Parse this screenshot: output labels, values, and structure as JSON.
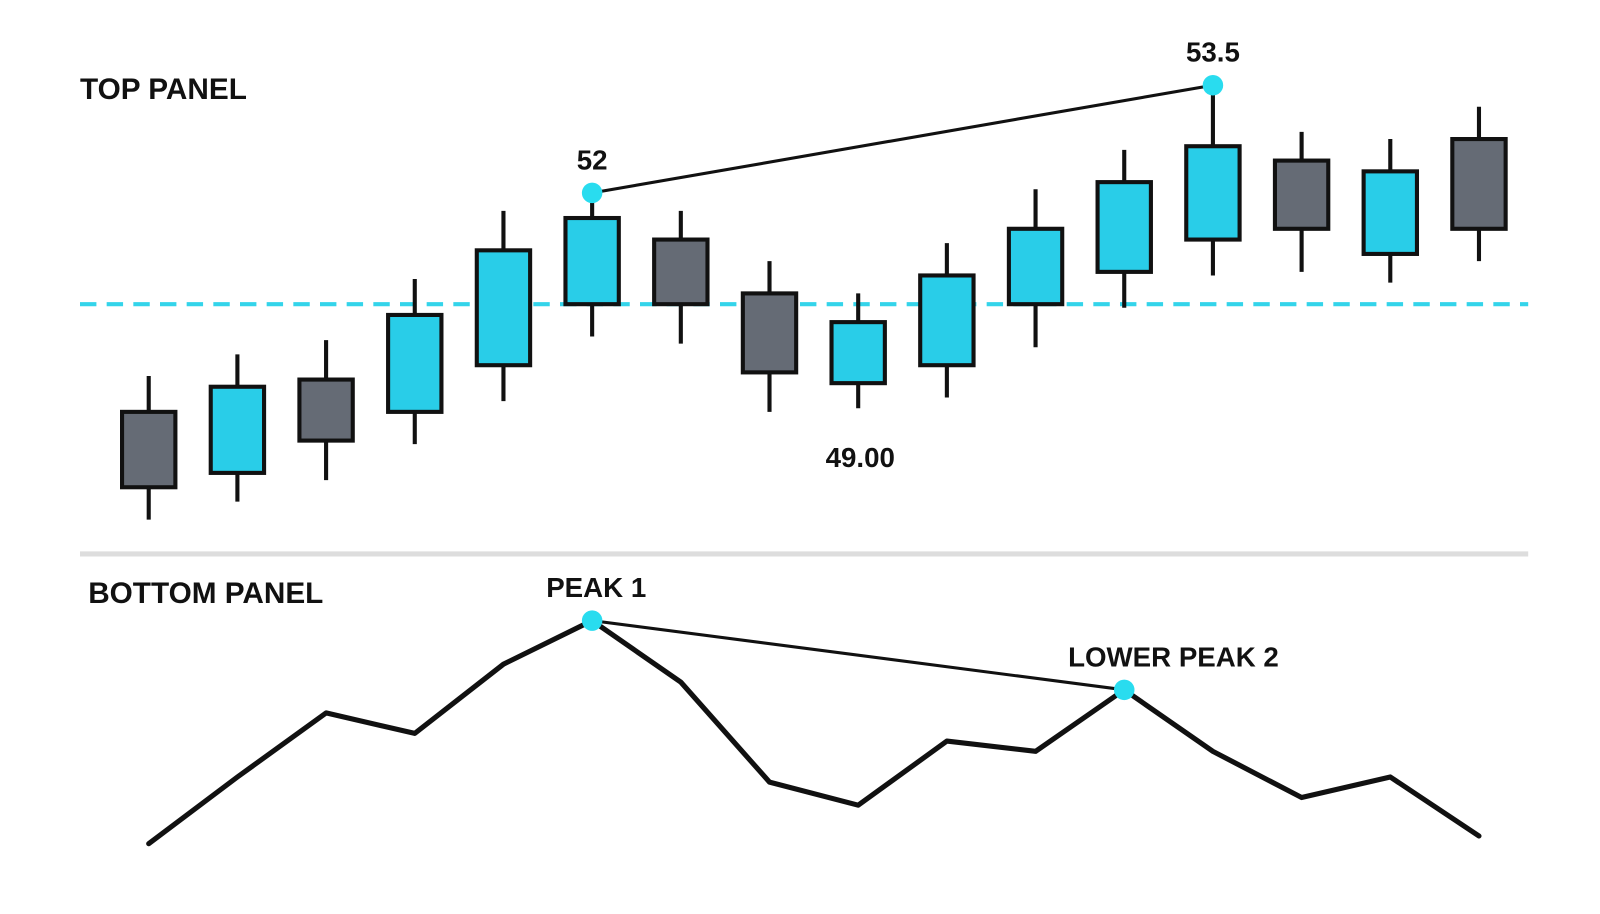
{
  "chart_data": [
    {
      "type": "candlestick",
      "title": "TOP PANEL",
      "open": [
        48.95,
        48.1,
        49.4,
        48.95,
        49.6,
        50.45,
        51.35,
        50.6,
        49.35,
        49.6,
        50.45,
        50.9,
        51.35,
        52.45,
        51.15,
        52.75
      ],
      "high": [
        49.45,
        49.75,
        49.95,
        50.8,
        51.75,
        52,
        51.75,
        51.05,
        50.6,
        51.3,
        52.05,
        52.6,
        53.5,
        52.85,
        52.75,
        53.2
      ],
      "low": [
        47.45,
        47.7,
        48.0,
        48.5,
        49.1,
        50.0,
        49.9,
        48.95,
        49.0,
        49.15,
        49.85,
        50.4,
        50.85,
        50.9,
        50.75,
        51.05
      ],
      "close": [
        47.9,
        49.3,
        48.55,
        50.3,
        51.2,
        51.65,
        50.45,
        49.5,
        50.2,
        50.85,
        51.5,
        52.15,
        52.65,
        51.5,
        52.3,
        51.5
      ],
      "high_labels": [
        null,
        null,
        null,
        null,
        null,
        "52",
        null,
        null,
        null,
        null,
        null,
        null,
        "53.5",
        null,
        null,
        null
      ],
      "low_labels": [
        null,
        null,
        null,
        null,
        null,
        null,
        null,
        null,
        "49.00",
        null,
        null,
        null,
        null,
        null,
        null,
        null
      ],
      "up_color": "#29cde8",
      "down_color": "#656b75",
      "ref_line": 50.45,
      "ref_color": "#33d4ea",
      "ylim": [
        47,
        54
      ]
    },
    {
      "type": "line",
      "title": "BOTTOM PANEL",
      "values": [
        7,
        33,
        58,
        50,
        77,
        94,
        70,
        31,
        22,
        47,
        43,
        67,
        43,
        25,
        33,
        10
      ],
      "point_labels": [
        null,
        null,
        null,
        null,
        null,
        "PEAK 1",
        null,
        null,
        null,
        null,
        null,
        "LOWER PEAK 2",
        null,
        null,
        null,
        null
      ],
      "color": "#111111",
      "marker_color": "#29dcef",
      "ylim": [
        0,
        100
      ]
    }
  ]
}
